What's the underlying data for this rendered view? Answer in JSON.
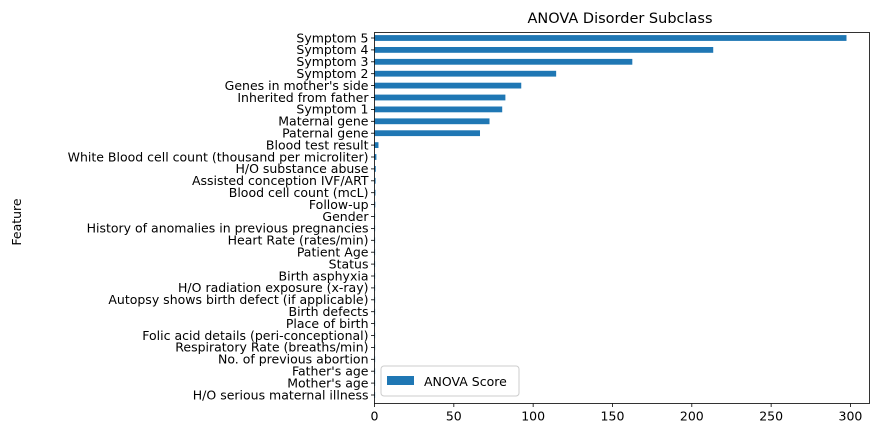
{
  "chart_data": {
    "type": "bar",
    "orientation": "horizontal",
    "title": "ANOVA Disorder Subclass",
    "xlabel": "",
    "ylabel": "Feature",
    "xlim": [
      0,
      312
    ],
    "xticks": [
      0,
      50,
      100,
      150,
      200,
      250,
      300
    ],
    "grid": false,
    "legend": {
      "placement": "lower-left",
      "entries": [
        "ANOVA Score"
      ]
    },
    "bar_color": "#1f77b4",
    "categories": [
      "Symptom 5",
      "Symptom 4",
      "Symptom 3",
      "Symptom 2",
      "Genes in mother's side",
      "Inherited from father",
      "Symptom 1",
      "Maternal gene",
      "Paternal gene",
      "Blood test result",
      "White Blood cell count (thousand per microliter)",
      "H/O substance abuse",
      "Assisted conception IVF/ART",
      "Blood cell count (mcL)",
      "Follow-up",
      "Gender",
      "History of anomalies in previous pregnancies",
      "Heart Rate (rates/min)",
      "Patient Age",
      "Status",
      "Birth asphyxia",
      "H/O radiation exposure (x-ray)",
      "Autopsy shows birth defect (if applicable)",
      "Birth defects",
      "Place of birth",
      "Folic acid details (peri-conceptional)",
      "Respiratory Rate (breaths/min)",
      "No. of previous abortion",
      "Father's age",
      "Mother's age",
      "H/O serious maternal illness"
    ],
    "series": [
      {
        "name": "ANOVA Score",
        "values": [
          297.5,
          213.5,
          162.5,
          114.5,
          92.5,
          82.5,
          80.5,
          72.5,
          66.5,
          2.5,
          1.2,
          0.8,
          0.7,
          0.6,
          0.5,
          0.3,
          0.3,
          0.2,
          0.2,
          0.1,
          0.1,
          0.1,
          0.1,
          0.1,
          0.05,
          0.05,
          0.05,
          0.05,
          0.02,
          0.02,
          0.01
        ]
      }
    ]
  }
}
